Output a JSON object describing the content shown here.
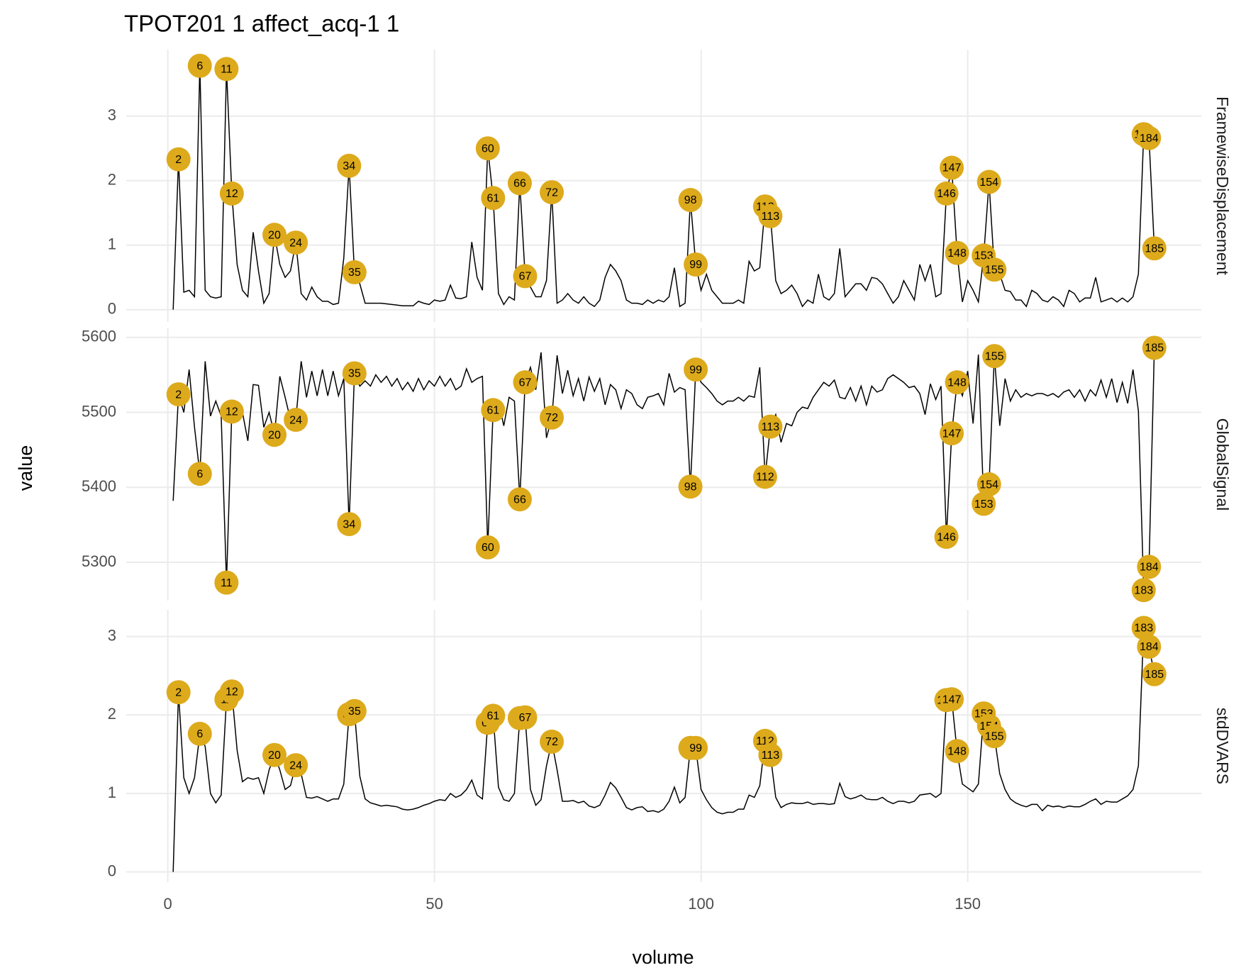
{
  "chart_data": {
    "type": "line",
    "title": "TPOT201  1  affect_acq-1  1",
    "x_label": "volume",
    "y_label": "value",
    "x": [
      1,
      2,
      3,
      4,
      5,
      6,
      7,
      8,
      9,
      10,
      11,
      12,
      13,
      14,
      15,
      16,
      17,
      18,
      19,
      20,
      21,
      22,
      23,
      24,
      25,
      26,
      27,
      28,
      29,
      30,
      31,
      32,
      33,
      34,
      35,
      36,
      37,
      38,
      39,
      40,
      41,
      42,
      43,
      44,
      45,
      46,
      47,
      48,
      49,
      50,
      51,
      52,
      53,
      54,
      55,
      56,
      57,
      58,
      59,
      60,
      61,
      62,
      63,
      64,
      65,
      66,
      67,
      68,
      69,
      70,
      71,
      72,
      73,
      74,
      75,
      76,
      77,
      78,
      79,
      80,
      81,
      82,
      83,
      84,
      85,
      86,
      87,
      88,
      89,
      90,
      91,
      92,
      93,
      94,
      95,
      96,
      97,
      98,
      99,
      100,
      101,
      102,
      103,
      104,
      105,
      106,
      107,
      108,
      109,
      110,
      111,
      112,
      113,
      114,
      115,
      116,
      117,
      118,
      119,
      120,
      121,
      122,
      123,
      124,
      125,
      126,
      127,
      128,
      129,
      130,
      131,
      132,
      133,
      134,
      135,
      136,
      137,
      138,
      139,
      140,
      141,
      142,
      143,
      144,
      145,
      146,
      147,
      148,
      149,
      150,
      151,
      152,
      153,
      154,
      155,
      156,
      157,
      158,
      159,
      160,
      161,
      162,
      163,
      164,
      165,
      166,
      167,
      168,
      169,
      170,
      171,
      172,
      173,
      174,
      175,
      176,
      177,
      178,
      179,
      180,
      181,
      182,
      183,
      184,
      185
    ],
    "xlim": [
      -7.8,
      193.8
    ],
    "xticks": [
      0,
      50,
      100,
      150
    ],
    "grid": true,
    "line_color": "#000000",
    "point_color": "#DDAA1C",
    "flagged": [
      2,
      6,
      11,
      12,
      20,
      24,
      34,
      35,
      60,
      61,
      66,
      67,
      72,
      98,
      99,
      112,
      113,
      146,
      147,
      148,
      153,
      154,
      155,
      183,
      184,
      185
    ],
    "facets": [
      {
        "name": "FramewiseDisplacement",
        "ylim": [
          -0.19,
          4.03
        ],
        "yticks": [
          0,
          1,
          2,
          3
        ],
        "values": [
          0,
          2.33,
          0.27,
          0.3,
          0.2,
          3.78,
          0.3,
          0.2,
          0.18,
          0.2,
          3.73,
          1.8,
          0.7,
          0.3,
          0.2,
          1.2,
          0.6,
          0.1,
          0.25,
          1.16,
          0.7,
          0.5,
          0.6,
          1.04,
          0.25,
          0.15,
          0.35,
          0.2,
          0.13,
          0.13,
          0.08,
          0.1,
          0.8,
          2.23,
          0.58,
          0.4,
          0.1,
          0.1,
          0.1,
          0.1,
          0.09,
          0.08,
          0.07,
          0.06,
          0.06,
          0.06,
          0.13,
          0.1,
          0.08,
          0.15,
          0.13,
          0.15,
          0.38,
          0.18,
          0.17,
          0.2,
          1.05,
          0.5,
          0.3,
          2.5,
          1.73,
          0.25,
          0.08,
          0.2,
          0.15,
          1.96,
          0.52,
          0.35,
          0.2,
          0.2,
          0.45,
          1.82,
          0.1,
          0.15,
          0.25,
          0.15,
          0.1,
          0.2,
          0.1,
          0.05,
          0.15,
          0.5,
          0.7,
          0.6,
          0.45,
          0.15,
          0.1,
          0.1,
          0.08,
          0.15,
          0.1,
          0.15,
          0.12,
          0.2,
          0.65,
          0.05,
          0.1,
          1.7,
          0.7,
          0.3,
          0.55,
          0.3,
          0.2,
          0.1,
          0.1,
          0.1,
          0.15,
          0.1,
          0.75,
          0.6,
          0.65,
          1.6,
          1.45,
          0.45,
          0.25,
          0.3,
          0.38,
          0.25,
          0.05,
          0.15,
          0.1,
          0.55,
          0.2,
          0.15,
          0.25,
          0.95,
          0.2,
          0.3,
          0.4,
          0.4,
          0.3,
          0.5,
          0.48,
          0.4,
          0.25,
          0.1,
          0.2,
          0.45,
          0.3,
          0.15,
          0.7,
          0.45,
          0.7,
          0.2,
          0.25,
          1.8,
          2.2,
          0.88,
          0.12,
          0.45,
          0.3,
          0.12,
          0.84,
          1.98,
          0.62,
          0.55,
          0.3,
          0.28,
          0.15,
          0.15,
          0.05,
          0.3,
          0.25,
          0.15,
          0.12,
          0.2,
          0.15,
          0.05,
          0.3,
          0.25,
          0.12,
          0.18,
          0.18,
          0.5,
          0.12,
          0.15,
          0.18,
          0.12,
          0.18,
          0.12,
          0.2,
          0.55,
          2.72,
          2.66,
          0.95
        ]
      },
      {
        "name": "GlobalSignal",
        "ylim": [
          5249,
          5612
        ],
        "yticks": [
          5300,
          5400,
          5500,
          5600
        ],
        "values": [
          5382,
          5524,
          5500,
          5557,
          5480,
          5418,
          5568,
          5495,
          5515,
          5495,
          5273,
          5501,
          5508,
          5500,
          5462,
          5537,
          5536,
          5480,
          5500,
          5470,
          5548,
          5520,
          5490,
          5490,
          5568,
          5520,
          5555,
          5522,
          5557,
          5522,
          5555,
          5522,
          5545,
          5351,
          5552,
          5535,
          5542,
          5535,
          5550,
          5540,
          5548,
          5535,
          5545,
          5530,
          5540,
          5528,
          5545,
          5530,
          5542,
          5535,
          5548,
          5535,
          5545,
          5530,
          5535,
          5558,
          5540,
          5545,
          5548,
          5320,
          5503,
          5515,
          5482,
          5520,
          5515,
          5384,
          5540,
          5560,
          5530,
          5580,
          5466,
          5493,
          5576,
          5525,
          5556,
          5522,
          5545,
          5515,
          5547,
          5528,
          5545,
          5510,
          5537,
          5530,
          5505,
          5530,
          5525,
          5510,
          5505,
          5520,
          5522,
          5525,
          5510,
          5552,
          5527,
          5533,
          5530,
          5401,
          5557,
          5540,
          5533,
          5525,
          5515,
          5510,
          5515,
          5515,
          5520,
          5515,
          5522,
          5520,
          5560,
          5414,
          5481,
          5497,
          5460,
          5485,
          5482,
          5500,
          5507,
          5505,
          5520,
          5530,
          5540,
          5535,
          5543,
          5520,
          5518,
          5533,
          5515,
          5535,
          5510,
          5535,
          5527,
          5530,
          5545,
          5550,
          5545,
          5540,
          5533,
          5535,
          5525,
          5497,
          5538,
          5517,
          5535,
          5334,
          5472,
          5540,
          5522,
          5555,
          5485,
          5577,
          5378,
          5404,
          5575,
          5482,
          5545,
          5515,
          5530,
          5520,
          5525,
          5522,
          5525,
          5525,
          5522,
          5525,
          5520,
          5527,
          5530,
          5520,
          5530,
          5515,
          5530,
          5522,
          5543,
          5520,
          5545,
          5513,
          5540,
          5512,
          5557,
          5502,
          5263,
          5294,
          5586
        ]
      },
      {
        "name": "stdDVARS",
        "ylim": [
          -0.13,
          3.34
        ],
        "yticks": [
          0,
          1,
          2,
          3
        ],
        "values": [
          0,
          2.29,
          1.2,
          1.0,
          1.2,
          1.76,
          1.6,
          1.0,
          0.88,
          0.98,
          2.2,
          2.3,
          1.55,
          1.15,
          1.2,
          1.18,
          1.2,
          1.0,
          1.3,
          1.49,
          1.3,
          1.05,
          1.1,
          1.36,
          1.25,
          0.95,
          0.94,
          0.96,
          0.93,
          0.9,
          0.93,
          0.93,
          1.12,
          2.01,
          2.05,
          1.22,
          0.93,
          0.88,
          0.86,
          0.84,
          0.85,
          0.84,
          0.83,
          0.8,
          0.79,
          0.8,
          0.82,
          0.85,
          0.87,
          0.9,
          0.92,
          0.91,
          1.0,
          0.95,
          0.98,
          1.05,
          1.17,
          0.98,
          0.93,
          1.9,
          1.99,
          1.08,
          0.92,
          0.9,
          1.0,
          1.96,
          1.97,
          1.05,
          0.85,
          0.92,
          1.35,
          1.66,
          1.3,
          0.9,
          0.9,
          0.91,
          0.88,
          0.9,
          0.84,
          0.82,
          0.85,
          0.98,
          1.14,
          1.07,
          0.95,
          0.82,
          0.79,
          0.82,
          0.83,
          0.77,
          0.78,
          0.76,
          0.8,
          0.9,
          1.08,
          0.88,
          0.95,
          1.58,
          1.58,
          1.05,
          0.92,
          0.82,
          0.76,
          0.74,
          0.76,
          0.76,
          0.8,
          0.8,
          0.98,
          0.95,
          1.1,
          1.67,
          1.49,
          0.95,
          0.82,
          0.86,
          0.88,
          0.87,
          0.87,
          0.89,
          0.86,
          0.87,
          0.87,
          0.86,
          0.87,
          1.13,
          0.96,
          0.93,
          0.95,
          0.98,
          0.93,
          0.92,
          0.92,
          0.95,
          0.9,
          0.87,
          0.9,
          0.9,
          0.88,
          0.9,
          0.98,
          0.99,
          1.0,
          0.95,
          1.0,
          2.19,
          2.2,
          1.54,
          1.12,
          1.07,
          1.02,
          1.12,
          2.02,
          1.86,
          1.73,
          1.25,
          1.05,
          0.93,
          0.88,
          0.85,
          0.83,
          0.86,
          0.86,
          0.78,
          0.85,
          0.83,
          0.84,
          0.82,
          0.84,
          0.83,
          0.83,
          0.86,
          0.9,
          0.93,
          0.86,
          0.9,
          0.89,
          0.89,
          0.93,
          0.97,
          1.05,
          1.35,
          3.11,
          2.87,
          2.52
        ]
      }
    ]
  }
}
